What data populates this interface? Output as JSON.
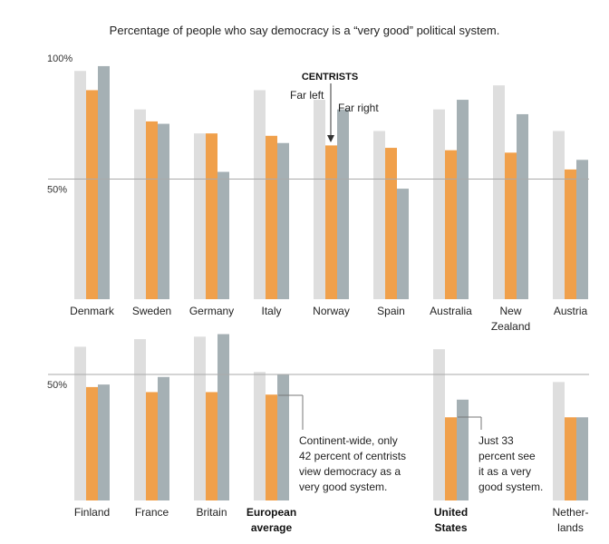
{
  "title": "Percentage of people who say democracy is a “very good” political system.",
  "colors": {
    "far_left": "#dedede",
    "centrists": "#f0a04b",
    "far_right": "#a5b0b4"
  },
  "chart_data": [
    {
      "type": "bar",
      "ylim": [
        0,
        100
      ],
      "ytick_labels": [
        "100%",
        "50%"
      ],
      "ytick_values": [
        100,
        50
      ],
      "categories": [
        {
          "lines": [
            "Denmark"
          ],
          "bold": false
        },
        {
          "lines": [
            "Sweden"
          ],
          "bold": false
        },
        {
          "lines": [
            "Germany"
          ],
          "bold": false
        },
        {
          "lines": [
            "Italy"
          ],
          "bold": false
        },
        {
          "lines": [
            "Norway"
          ],
          "bold": false
        },
        {
          "lines": [
            "Spain"
          ],
          "bold": false
        },
        {
          "lines": [
            "Australia"
          ],
          "bold": false
        },
        {
          "lines": [
            "New",
            "Zealand"
          ],
          "bold": false
        },
        {
          "lines": [
            "Austria"
          ],
          "bold": false
        }
      ],
      "series": [
        {
          "name": "Far left",
          "color_key": "far_left",
          "values": [
            95,
            79,
            69,
            87,
            83,
            70,
            79,
            89,
            70
          ]
        },
        {
          "name": "Centrists",
          "color_key": "centrists",
          "values": [
            87,
            74,
            69,
            68,
            64,
            63,
            62,
            61,
            54
          ]
        },
        {
          "name": "Far right",
          "color_key": "far_right",
          "values": [
            97,
            73,
            53,
            65,
            79,
            46,
            83,
            77,
            58
          ]
        }
      ],
      "legend_labels": {
        "centrists": "CENTRISTS",
        "far_left": "Far left",
        "far_right": "Far right"
      }
    },
    {
      "type": "bar",
      "ylim": [
        0,
        100
      ],
      "ytick_labels": [
        "50%"
      ],
      "ytick_values": [
        50
      ],
      "categories": [
        {
          "lines": [
            "Finland"
          ],
          "bold": false
        },
        {
          "lines": [
            "France"
          ],
          "bold": false
        },
        {
          "lines": [
            "Britain"
          ],
          "bold": false
        },
        {
          "lines": [
            "European",
            "average"
          ],
          "bold": true
        },
        {
          "lines": [
            "United",
            "States"
          ],
          "bold": true
        },
        {
          "lines": [
            "Nether-",
            "lands"
          ],
          "bold": false
        }
      ],
      "series": [
        {
          "name": "Far left",
          "color_key": "far_left",
          "values": [
            61,
            64,
            65,
            51,
            60,
            47
          ]
        },
        {
          "name": "Centrists",
          "color_key": "centrists",
          "values": [
            45,
            43,
            43,
            42,
            33,
            33
          ]
        },
        {
          "name": "Far right",
          "color_key": "far_right",
          "values": [
            46,
            49,
            66,
            50,
            40,
            33
          ]
        }
      ],
      "annotations": [
        {
          "lines": [
            "Continent-wide, only",
            "42 percent of centrists",
            "view democracy as a",
            "very good system."
          ]
        },
        {
          "lines": [
            "Just 33",
            "percent see",
            "it as a very",
            "good system."
          ]
        }
      ]
    }
  ]
}
